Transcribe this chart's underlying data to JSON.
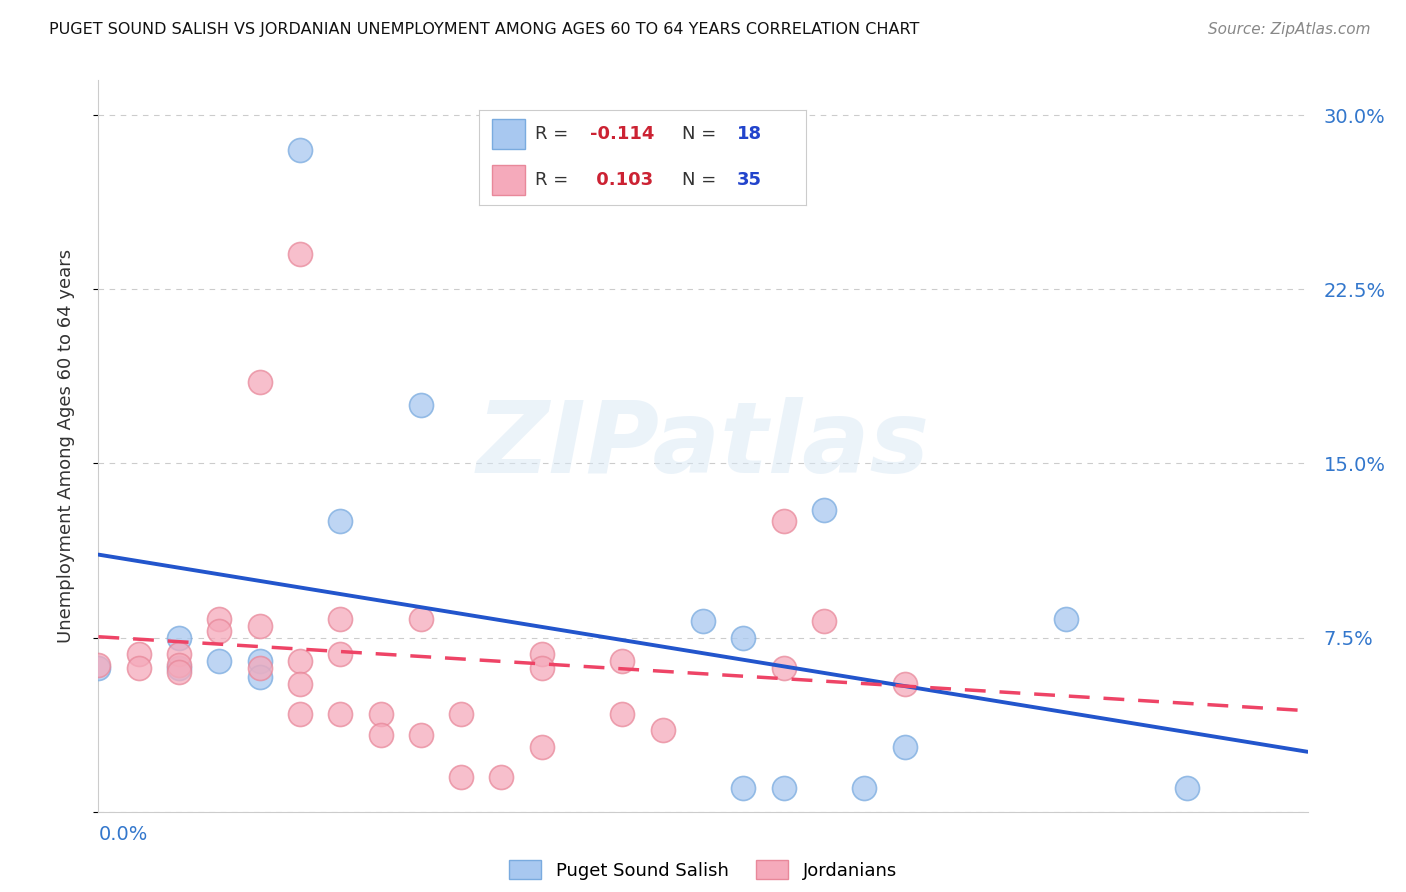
{
  "title": "PUGET SOUND SALISH VS JORDANIAN UNEMPLOYMENT AMONG AGES 60 TO 64 YEARS CORRELATION CHART",
  "source": "Source: ZipAtlas.com",
  "ylabel": "Unemployment Among Ages 60 to 64 years",
  "xlim": [
    0.0,
    0.15
  ],
  "ylim": [
    0.0,
    0.315
  ],
  "yticks": [
    0.0,
    0.075,
    0.15,
    0.225,
    0.3
  ],
  "ytick_labels": [
    "",
    "7.5%",
    "15.0%",
    "22.5%",
    "30.0%"
  ],
  "blue_color": "#A8C8F0",
  "blue_edge_color": "#7AABDF",
  "pink_color": "#F5AABB",
  "pink_edge_color": "#E8889A",
  "blue_line_color": "#2255CC",
  "pink_line_color": "#EE4466",
  "watermark_text": "ZIPatlas",
  "blue_R": -0.114,
  "blue_N": 18,
  "pink_R": 0.103,
  "pink_N": 35,
  "blue_points_x": [
    0.025,
    0.04,
    0.0,
    0.01,
    0.01,
    0.015,
    0.02,
    0.03,
    0.075,
    0.08,
    0.09,
    0.12,
    0.08,
    0.085,
    0.095,
    0.135,
    0.1,
    0.02
  ],
  "blue_points_y": [
    0.285,
    0.175,
    0.062,
    0.075,
    0.062,
    0.065,
    0.065,
    0.125,
    0.082,
    0.075,
    0.13,
    0.083,
    0.01,
    0.01,
    0.01,
    0.01,
    0.028,
    0.058
  ],
  "pink_points_x": [
    0.025,
    0.02,
    0.0,
    0.005,
    0.005,
    0.01,
    0.01,
    0.01,
    0.015,
    0.015,
    0.02,
    0.02,
    0.025,
    0.025,
    0.025,
    0.03,
    0.03,
    0.03,
    0.035,
    0.035,
    0.04,
    0.04,
    0.045,
    0.055,
    0.055,
    0.065,
    0.065,
    0.07,
    0.085,
    0.09,
    0.1,
    0.085,
    0.045,
    0.05,
    0.055
  ],
  "pink_points_y": [
    0.24,
    0.185,
    0.063,
    0.068,
    0.062,
    0.068,
    0.063,
    0.06,
    0.083,
    0.078,
    0.08,
    0.062,
    0.065,
    0.055,
    0.042,
    0.083,
    0.068,
    0.042,
    0.042,
    0.033,
    0.083,
    0.033,
    0.042,
    0.068,
    0.062,
    0.065,
    0.042,
    0.035,
    0.125,
    0.082,
    0.055,
    0.062,
    0.015,
    0.015,
    0.028
  ]
}
